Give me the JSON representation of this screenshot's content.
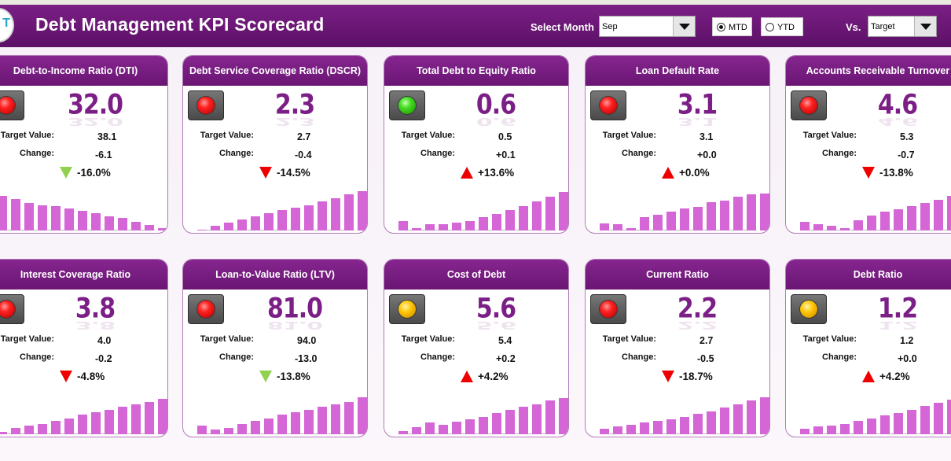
{
  "header": {
    "logo_text": "T",
    "title": "Debt Management KPI Scorecard",
    "select_month_label": "Select Month",
    "month_value": "Sep",
    "radio_mtd": "MTD",
    "radio_ytd": "YTD",
    "selected_mode": "MTD",
    "vs_label": "Vs.",
    "compare_value": "Target"
  },
  "colors": {
    "header": "#6a1574",
    "bar": "#d466d6",
    "value": "#7b1f86",
    "up_arrow": "#ee0000",
    "down_good": "#92d050"
  },
  "labels": {
    "target": "Target Value:",
    "change": "Change:"
  },
  "cards": [
    {
      "title": "Debt-to-Income Ratio (DTI)",
      "light": "red",
      "value": "32.0",
      "target": "38.1",
      "change": "-6.1",
      "pct": "-16.0%",
      "arrow": "down-green",
      "bars": [
        0.78,
        0.72,
        0.62,
        0.58,
        0.55,
        0.5,
        0.45,
        0.4,
        0.32,
        0.28,
        0.2,
        0.12,
        0.05
      ]
    },
    {
      "title": "Debt Service Coverage Ratio (DSCR)",
      "light": "red",
      "value": "2.3",
      "target": "2.7",
      "change": "-0.4",
      "pct": "-14.5%",
      "arrow": "down-red",
      "bars": [
        0.02,
        0.1,
        0.18,
        0.25,
        0.32,
        0.4,
        0.46,
        0.52,
        0.58,
        0.66,
        0.74,
        0.82,
        0.9
      ]
    },
    {
      "title": "Total Debt to Equity Ratio",
      "light": "green",
      "value": "0.6",
      "target": "0.5",
      "change": "+0.1",
      "pct": "+13.6%",
      "arrow": "up",
      "bars": [
        0.22,
        0.06,
        0.14,
        0.14,
        0.18,
        0.22,
        0.3,
        0.38,
        0.46,
        0.56,
        0.66,
        0.76,
        0.88
      ]
    },
    {
      "title": "Loan Default Rate",
      "light": "red",
      "value": "3.1",
      "target": "3.1",
      "change": "+0.0",
      "pct": "+0.0%",
      "arrow": "up",
      "bars": [
        0.16,
        0.14,
        0.05,
        0.3,
        0.36,
        0.42,
        0.5,
        0.54,
        0.64,
        0.68,
        0.76,
        0.82,
        0.84
      ]
    },
    {
      "title": "Accounts Receivable Turnover",
      "light": "red",
      "value": "4.6",
      "target": "5.3",
      "change": "-0.7",
      "pct": "-13.8%",
      "arrow": "down-red",
      "bars": [
        0.2,
        0.14,
        0.1,
        0.06,
        0.24,
        0.34,
        0.42,
        0.48,
        0.56,
        0.62,
        0.7,
        0.78,
        0.86
      ]
    },
    {
      "title": "Interest Coverage Ratio",
      "light": "red",
      "value": "3.8",
      "target": "4.0",
      "change": "-0.2",
      "pct": "-4.8%",
      "arrow": "down-red",
      "bars": [
        0.06,
        0.14,
        0.2,
        0.24,
        0.3,
        0.36,
        0.44,
        0.5,
        0.56,
        0.62,
        0.68,
        0.74,
        0.8
      ]
    },
    {
      "title": "Loan-to-Value Ratio (LTV)",
      "light": "red",
      "value": "81.0",
      "target": "94.0",
      "change": "-13.0",
      "pct": "-13.8%",
      "arrow": "down-green",
      "bars": [
        0.2,
        0.1,
        0.14,
        0.24,
        0.3,
        0.36,
        0.44,
        0.5,
        0.56,
        0.62,
        0.68,
        0.74,
        0.84
      ]
    },
    {
      "title": "Cost of Debt",
      "light": "yellow",
      "value": "5.6",
      "target": "5.4",
      "change": "+0.2",
      "pct": "+4.2%",
      "arrow": "up",
      "bars": [
        0.08,
        0.16,
        0.26,
        0.22,
        0.28,
        0.34,
        0.4,
        0.48,
        0.56,
        0.62,
        0.68,
        0.76,
        0.82
      ]
    },
    {
      "title": "Current Ratio",
      "light": "red",
      "value": "2.2",
      "target": "2.7",
      "change": "-0.5",
      "pct": "-18.7%",
      "arrow": "down-red",
      "bars": [
        0.12,
        0.18,
        0.22,
        0.26,
        0.3,
        0.34,
        0.4,
        0.46,
        0.52,
        0.6,
        0.68,
        0.76,
        0.84
      ]
    },
    {
      "title": "Debt Ratio",
      "light": "yellow",
      "value": "1.2",
      "target": "1.2",
      "change": "+0.0",
      "pct": "+4.2%",
      "arrow": "up",
      "bars": [
        0.12,
        0.18,
        0.2,
        0.24,
        0.3,
        0.36,
        0.42,
        0.48,
        0.56,
        0.64,
        0.72,
        0.78,
        0.86
      ]
    }
  ]
}
